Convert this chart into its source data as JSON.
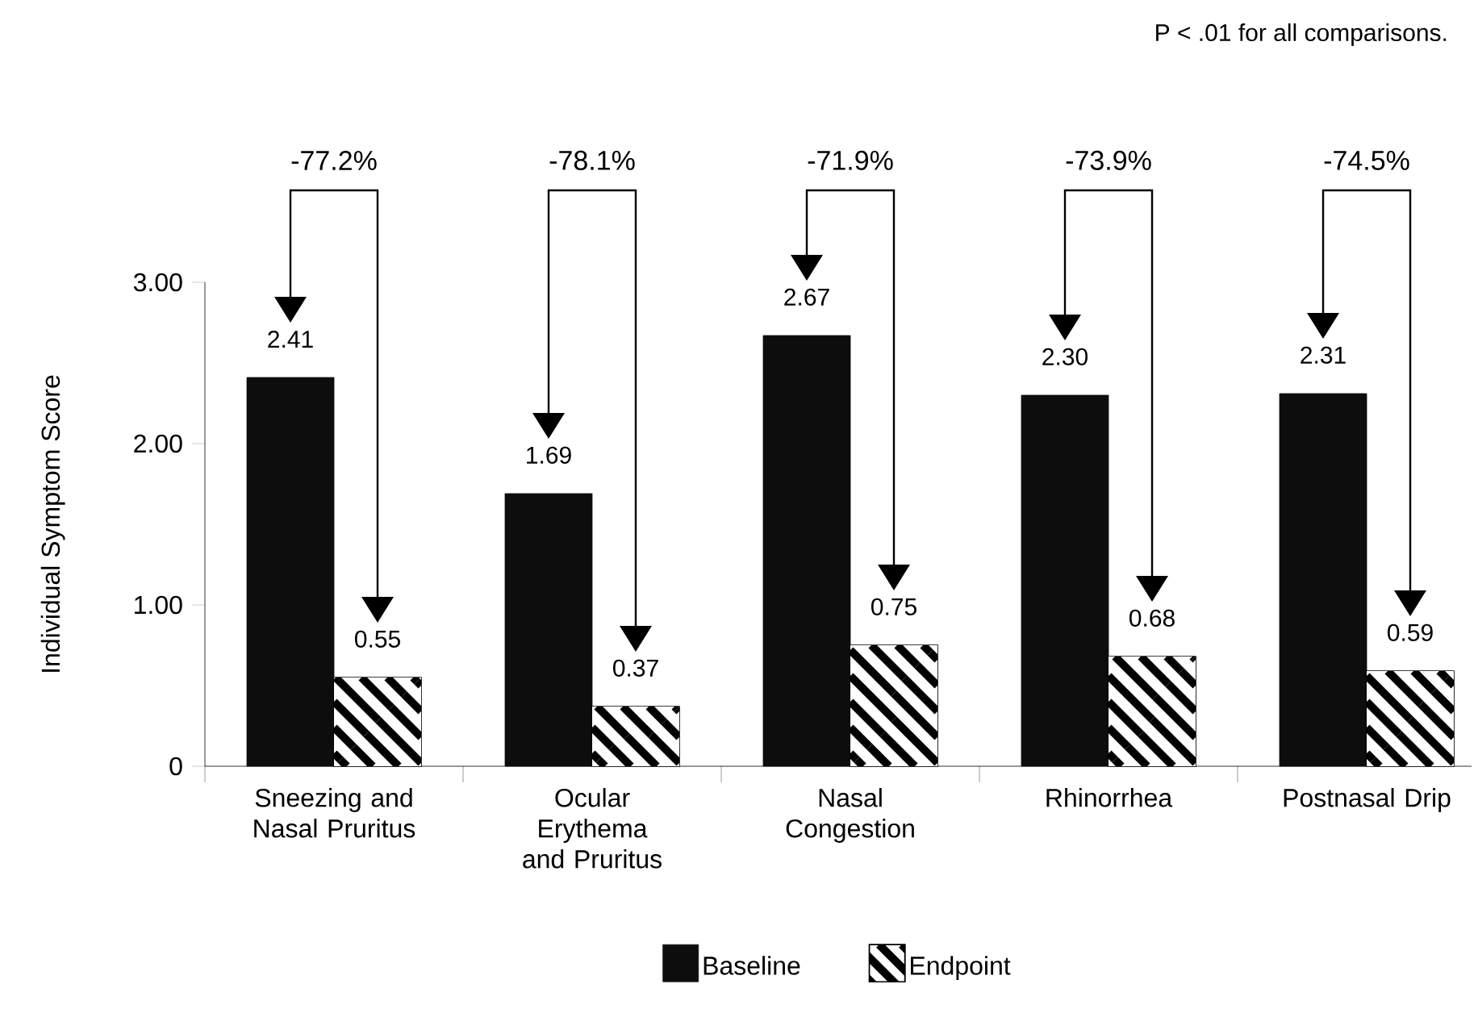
{
  "chart_data": {
    "type": "bar",
    "ylabel": "Individual Symptom Score",
    "categories": [
      "Sneezing and Nasal Pruritus",
      "Ocular Erythema and Pruritus",
      "Nasal Congestion",
      "Rhinorrhea",
      "Postnasal Drip"
    ],
    "series": [
      {
        "name": "Baseline",
        "color": "#0d0d0d",
        "values": [
          2.41,
          1.69,
          2.67,
          2.3,
          2.31
        ],
        "value_labels": [
          "2.41",
          "1.69",
          "2.67",
          "2.30",
          "2.31"
        ]
      },
      {
        "name": "Endpoint",
        "color": "#ffffff",
        "values": [
          0.55,
          0.37,
          0.75,
          0.68,
          0.59
        ],
        "value_labels": [
          "0.55",
          "0.37",
          "0.75",
          "0.68",
          "0.59"
        ]
      }
    ],
    "ylim": [
      0,
      3
    ],
    "yticks": [
      0,
      {
        "value": 1,
        "label": "1.00"
      },
      {
        "value": 2,
        "label": "2.00"
      },
      {
        "value": 3,
        "label": "3.00"
      }
    ],
    "grid": false,
    "legend": "bottom",
    "annotations": [
      "P < .01 for all comparisons.",
      "-77.2%",
      "-78.1%",
      "-71.9%",
      "-73.9%",
      "-74.5%"
    ]
  }
}
